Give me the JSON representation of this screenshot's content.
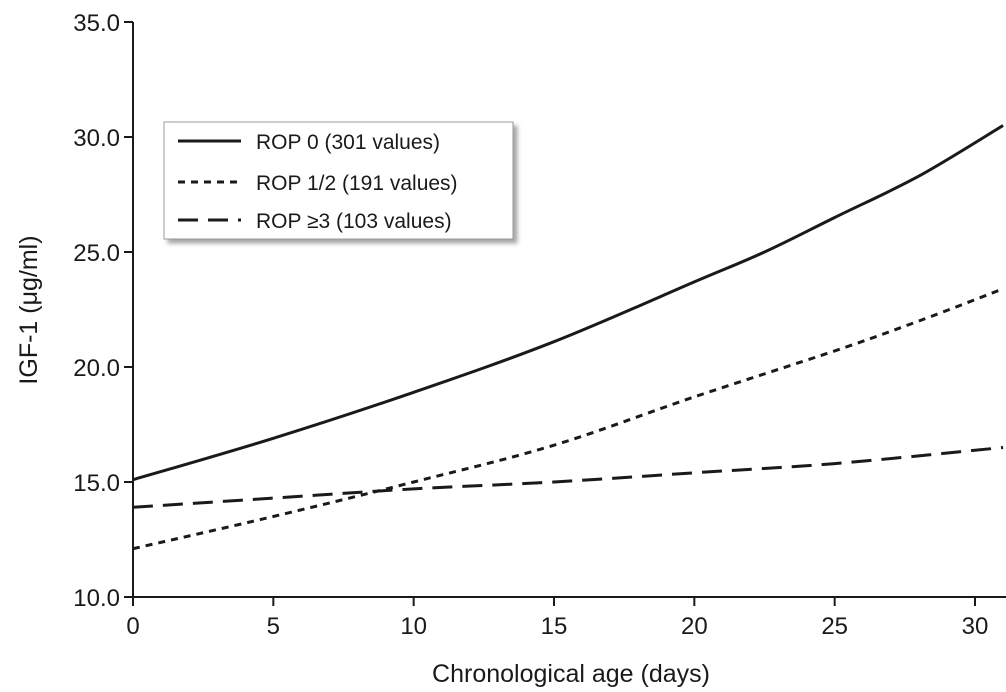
{
  "chart_data": {
    "type": "line",
    "xlabel": "Chronological age (days)",
    "ylabel": "IGF-1 (μg/ml)",
    "xlim": [
      0,
      31
    ],
    "ylim": [
      10,
      35
    ],
    "x_ticks": [
      "0",
      "5",
      "10",
      "15",
      "20",
      "25",
      "30"
    ],
    "y_ticks": [
      "10.0",
      "15.0",
      "20.0",
      "25.0",
      "30.0",
      "35.0"
    ],
    "grid": false,
    "legend_position": "top-left",
    "series": [
      {
        "name": "ROP 0 (301 values)",
        "style": "solid",
        "x": [
          0,
          5,
          10,
          15,
          20,
          22.5,
          25,
          28,
          31
        ],
        "y": [
          15.1,
          16.9,
          18.9,
          21.1,
          23.7,
          25.0,
          26.5,
          28.3,
          30.5
        ]
      },
      {
        "name": "ROP 1/2 (191 values)",
        "style": "short-dash",
        "x": [
          0,
          5,
          10,
          15,
          20,
          25,
          28,
          31
        ],
        "y": [
          12.1,
          13.5,
          15.0,
          16.6,
          18.7,
          20.7,
          22.0,
          23.4
        ]
      },
      {
        "name": "ROP ≥3 (103 values)",
        "style": "long-dash",
        "x": [
          0,
          5,
          10,
          15,
          20,
          25,
          31
        ],
        "y": [
          13.9,
          14.3,
          14.7,
          15.0,
          15.4,
          15.8,
          16.5
        ]
      }
    ]
  }
}
